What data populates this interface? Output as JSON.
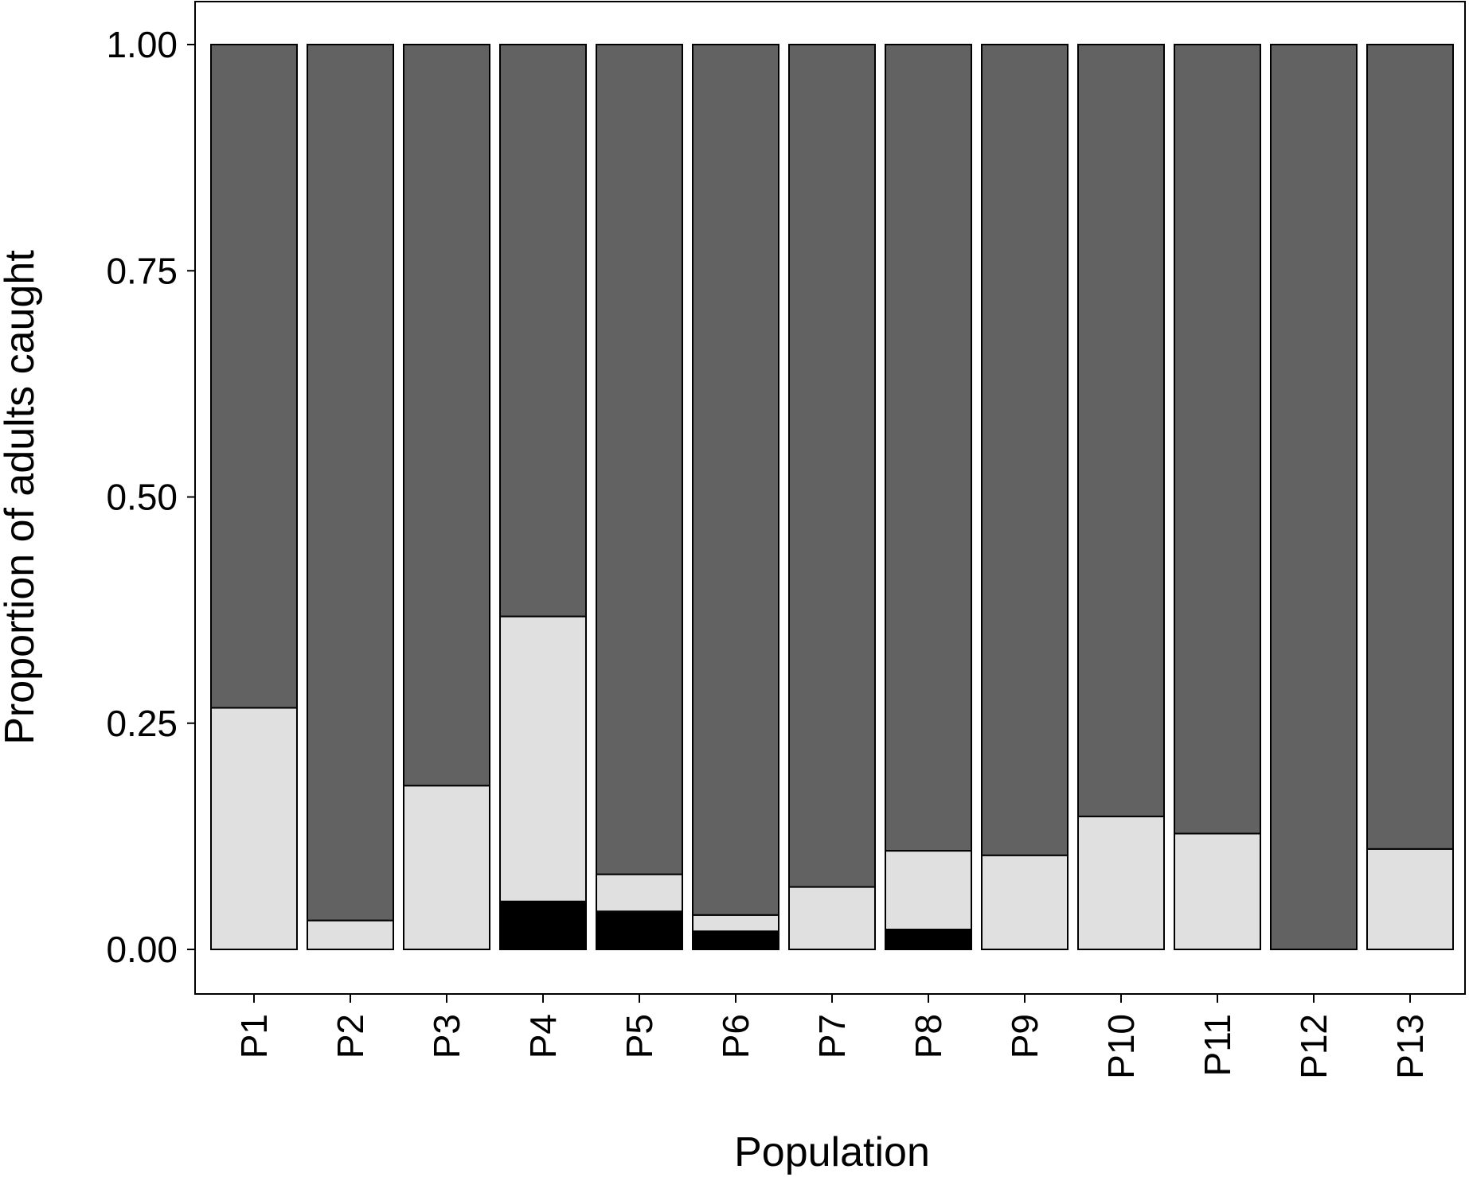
{
  "chart_data": {
    "type": "bar",
    "stacked": true,
    "title": "",
    "xlabel": "Population",
    "ylabel": "Proportion of adults caught",
    "ylim": [
      0,
      1
    ],
    "yticks": [
      "0.00",
      "0.25",
      "0.50",
      "0.75",
      "1.00"
    ],
    "ytick_values": [
      0,
      0.25,
      0.5,
      0.75,
      1
    ],
    "grid": false,
    "legend": "none",
    "categories": [
      "P1",
      "P2",
      "P3",
      "P4",
      "P5",
      "P6",
      "P7",
      "P8",
      "P9",
      "P10",
      "P11",
      "P12",
      "P13"
    ],
    "series": [
      {
        "color": "#000000",
        "values": [
          0,
          0,
          0,
          0.053,
          0.042,
          0.02,
          0,
          0.022,
          0,
          0,
          0,
          0,
          0
        ]
      },
      {
        "color": "#e0e0e0",
        "values": [
          0.267,
          0.032,
          0.181,
          0.315,
          0.041,
          0.018,
          0.069,
          0.087,
          0.104,
          0.147,
          0.128,
          0,
          0.111
        ]
      },
      {
        "color": "#626262",
        "values": [
          0.733,
          0.968,
          0.819,
          0.632,
          0.917,
          0.962,
          0.931,
          0.891,
          0.896,
          0.853,
          0.872,
          1,
          0.889
        ]
      }
    ]
  }
}
